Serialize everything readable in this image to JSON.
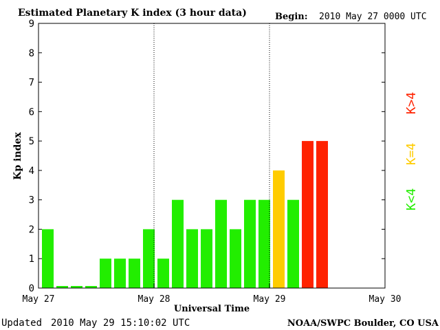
{
  "header": {
    "title": "Estimated Planetary K index (3 hour data)",
    "begin_label": "Begin:",
    "begin_value": "2010 May 27 0000 UTC"
  },
  "footer": {
    "updated_label": "Updated",
    "updated_value": "2010 May 29 15:10:02 UTC",
    "source": "NOAA/SWPC Boulder, CO USA"
  },
  "legend": {
    "below4": "K<4",
    "eq4": "K=4",
    "above4": "K>4"
  },
  "colors": {
    "below4": "#22ee00",
    "eq4": "#ffcc00",
    "above4": "#ff2200"
  },
  "chart_data": {
    "type": "bar",
    "title": "Estimated Planetary K index (3 hour data)",
    "xlabel": "Universal Time",
    "ylabel": "Kp index",
    "ylim": [
      0,
      9
    ],
    "yticks": [
      0,
      1,
      2,
      3,
      4,
      5,
      6,
      7,
      8,
      9
    ],
    "xtick_labels": [
      "May 27",
      "May 28",
      "May 29",
      "May 30"
    ],
    "day_separators": [
      "May 28",
      "May 29"
    ],
    "bins_per_day": 8,
    "total_bins": 24,
    "values": [
      2,
      0,
      0,
      0,
      1,
      1,
      1,
      2,
      1,
      3,
      2,
      2,
      3,
      2,
      3,
      3,
      4,
      3,
      5,
      5
    ],
    "color_rule": "K<4 green, K=4 yellow, K>4 red"
  }
}
